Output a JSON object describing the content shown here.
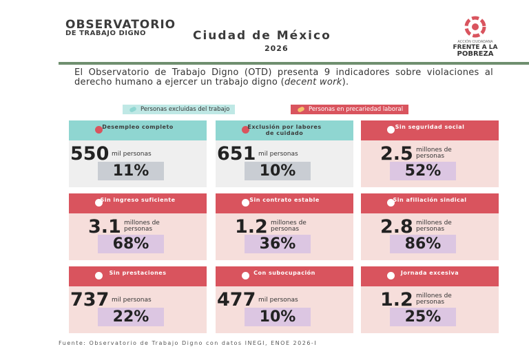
{
  "header": {
    "org_line1": "OBSERVATORIO",
    "org_line2": "DE TRABAJO DIGNO",
    "title": "Ciudad de México",
    "year": "2026",
    "logo": {
      "tagline": "ACCIÓN CIUDADANA",
      "line1": "FRENTE A LA",
      "line2": "POBREZA"
    }
  },
  "intro": {
    "text_before": "El Observatorio de Trabajo Digno (OTD) presenta 9 indicadores sobre violaciones al derecho humano a ejercer un trabajo digno (",
    "emphasis": "decent work",
    "text_after": ")."
  },
  "legend": [
    {
      "label": "Personas excluidas del trabajo",
      "color": "#8fd6d1"
    },
    {
      "label": "Personas en precariedad laboral",
      "color": "#d9545e"
    }
  ],
  "cards": [
    {
      "title": "Desempleo completo",
      "amount": "550",
      "unit": "mil personas",
      "percent": "11%",
      "legend": 0
    },
    {
      "title": "Exclusión por labores de cuidado",
      "amount": "651",
      "unit": "mil personas",
      "percent": "10%",
      "legend": 0
    },
    {
      "title": "Sin seguridad social",
      "amount": "2.5",
      "unit": "millones de personas",
      "percent": "52%",
      "legend": 1
    },
    {
      "title": "Sin ingreso suficiente",
      "amount": "3.1",
      "unit": "millones de personas",
      "percent": "68%",
      "legend": 1
    },
    {
      "title": "Sin contrato estable",
      "amount": "1.2",
      "unit": "millones de personas",
      "percent": "36%",
      "legend": 1
    },
    {
      "title": "Sin afiliación sindical",
      "amount": "2.8",
      "unit": "millones de personas",
      "percent": "86%",
      "legend": 1
    },
    {
      "title": "Sin prestaciones",
      "amount": "737",
      "unit": "mil personas",
      "percent": "22%",
      "legend": 1
    },
    {
      "title": "Con subocupación",
      "amount": "477",
      "unit": "mil personas",
      "percent": "10%",
      "legend": 1
    },
    {
      "title": "Jornada excesiva",
      "amount": "1.2",
      "unit": "millones de personas",
      "percent": "25%",
      "legend": 1
    }
  ],
  "source": "Fuente: Observatorio de Trabajo Digno con datos INEGI, ENOE 2026-I"
}
